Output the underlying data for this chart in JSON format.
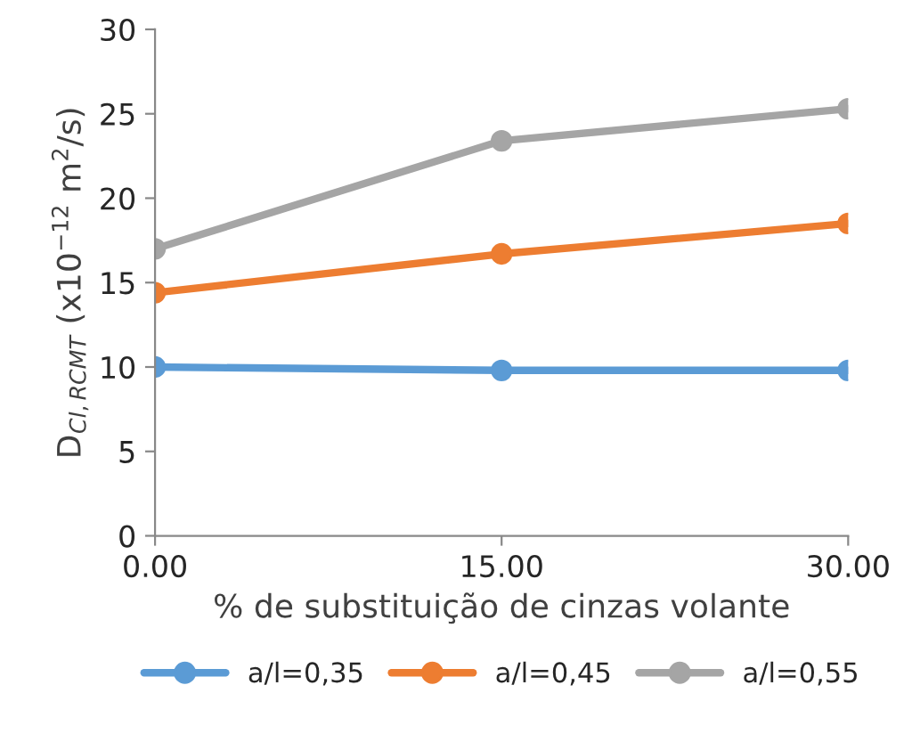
{
  "chart_data": {
    "type": "line",
    "xlabel": "% de substituição de cinzas volante",
    "ylabel": "D$_{Cl,RCMT}$ (x10$^{−12}$ m$^{2}$/s)",
    "x": [
      0,
      15,
      30
    ],
    "series": [
      {
        "name": "a/l=0,35",
        "color": "#5b9bd5",
        "values": [
          10.0,
          9.8,
          9.8
        ]
      },
      {
        "name": "a/l=0,45",
        "color": "#ed7d31",
        "values": [
          14.4,
          16.7,
          18.5
        ]
      },
      {
        "name": "a/l=0,55",
        "color": "#a5a5a5",
        "values": [
          17.0,
          23.4,
          25.3
        ]
      }
    ],
    "xlim": [
      0,
      30
    ],
    "xticks": [
      {
        "value": 0,
        "label": "0.00"
      },
      {
        "value": 15,
        "label": "15.00"
      },
      {
        "value": 30,
        "label": "30.00"
      }
    ],
    "ylim": [
      0,
      30
    ],
    "yticks": [
      0,
      5,
      10,
      15,
      20,
      25,
      30
    ],
    "marker": "circle",
    "line_style": "solid",
    "grid": false,
    "legend": "bottom"
  }
}
